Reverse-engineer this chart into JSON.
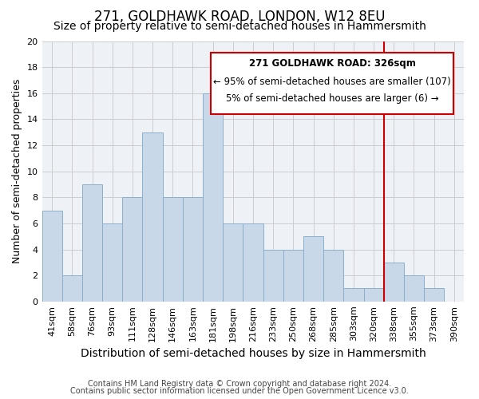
{
  "title": "271, GOLDHAWK ROAD, LONDON, W12 8EU",
  "subtitle": "Size of property relative to semi-detached houses in Hammersmith",
  "xlabel": "Distribution of semi-detached houses by size in Hammersmith",
  "ylabel": "Number of semi-detached properties",
  "bin_labels": [
    "41sqm",
    "58sqm",
    "76sqm",
    "93sqm",
    "111sqm",
    "128sqm",
    "146sqm",
    "163sqm",
    "181sqm",
    "198sqm",
    "216sqm",
    "233sqm",
    "250sqm",
    "268sqm",
    "285sqm",
    "303sqm",
    "320sqm",
    "338sqm",
    "355sqm",
    "373sqm",
    "390sqm"
  ],
  "bar_heights": [
    7,
    2,
    9,
    6,
    8,
    13,
    8,
    8,
    16,
    6,
    6,
    4,
    4,
    5,
    4,
    1,
    1,
    3,
    2,
    1,
    0
  ],
  "bar_color": "#c8d8e8",
  "bar_edge_color": "#8ab0cc",
  "grid_color": "#cccccc",
  "background_color": "#eef2f7",
  "ylim": [
    0,
    20
  ],
  "yticks": [
    0,
    2,
    4,
    6,
    8,
    10,
    12,
    14,
    16,
    18,
    20
  ],
  "vline_x": 16.5,
  "vline_color": "#cc0000",
  "annotation_title": "271 GOLDHAWK ROAD: 326sqm",
  "annotation_line1": "← 95% of semi-detached houses are smaller (107)",
  "annotation_line2": "5% of semi-detached houses are larger (6) →",
  "footnote1": "Contains HM Land Registry data © Crown copyright and database right 2024.",
  "footnote2": "Contains public sector information licensed under the Open Government Licence v3.0.",
  "title_fontsize": 12,
  "subtitle_fontsize": 10,
  "xlabel_fontsize": 10,
  "ylabel_fontsize": 9,
  "tick_fontsize": 8,
  "annotation_fontsize": 8.5,
  "footnote_fontsize": 7
}
